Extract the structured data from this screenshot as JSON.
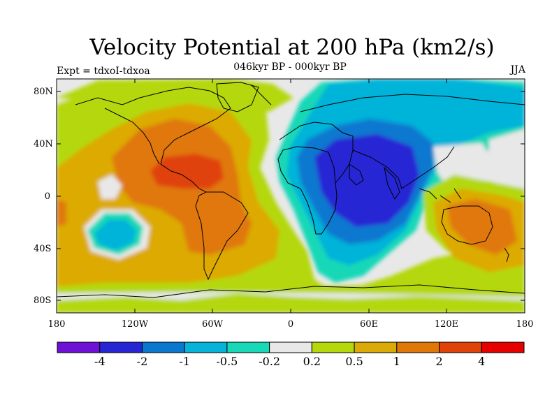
{
  "map": {
    "title": "Velocity Potential at 200 hPa (km2/s)",
    "subtitle": "046kyr BP - 000kyr BP",
    "left_string": "Expt = tdxoI-tdxoa",
    "right_string": "JJA",
    "lat_labels": [
      "80N",
      "40N",
      "0",
      "40S",
      "80S"
    ],
    "lon_labels": [
      "180",
      "120W",
      "60W",
      "0",
      "60E",
      "120E",
      "180"
    ]
  },
  "colorbar": {
    "labels": [
      "-4",
      "-2",
      "-1",
      "-0.5",
      "-0.2",
      "0.2",
      "0.5",
      "1",
      "2",
      "4"
    ],
    "colors": [
      "#6f10d8",
      "#2626d4",
      "#0a78cf",
      "#06b3d9",
      "#17d8b7",
      "#e8e8e8",
      "#b4d80b",
      "#dcaa06",
      "#e07808",
      "#e04208",
      "#e60000"
    ]
  }
}
